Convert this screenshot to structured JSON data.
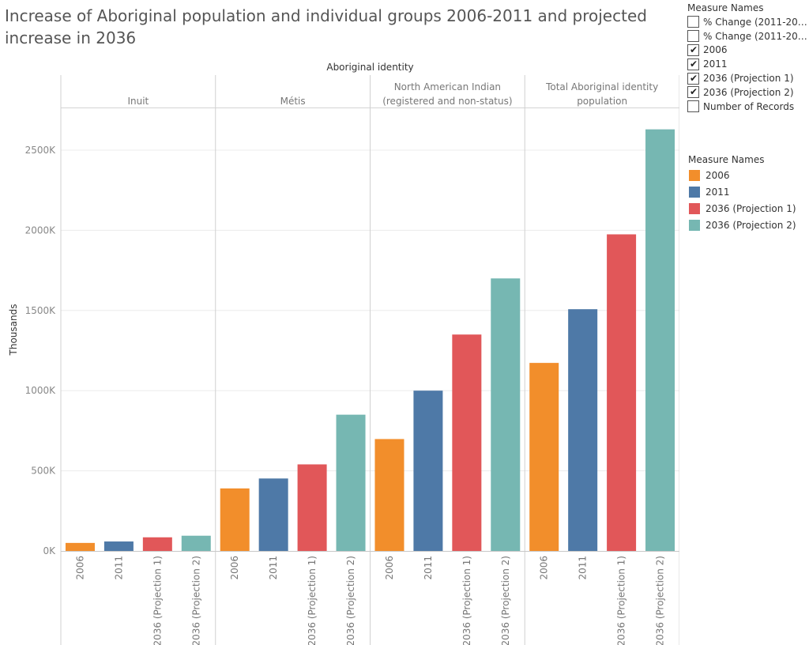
{
  "title": "Increase of Aboriginal population and individual groups 2006-2011 and projected increase in 2036",
  "filter_legend": {
    "header": "Measure Names",
    "items": [
      {
        "label": "% Change (2011-203..",
        "checked": false
      },
      {
        "label": "% Change (2011-203..",
        "checked": false
      },
      {
        "label": "2006",
        "checked": true
      },
      {
        "label": "2011",
        "checked": true
      },
      {
        "label": "2036 (Projection 1)",
        "checked": true
      },
      {
        "label": "2036 (Projection 2)",
        "checked": true
      },
      {
        "label": "Number of Records",
        "checked": false
      }
    ]
  },
  "color_legend": {
    "header": "Measure Names",
    "items": [
      {
        "label": "2006",
        "color": "#f28e2b"
      },
      {
        "label": "2011",
        "color": "#4e79a7"
      },
      {
        "label": "2036 (Projection 1)",
        "color": "#e15759"
      },
      {
        "label": "2036 (Projection 2)",
        "color": "#76b7b2"
      }
    ]
  },
  "chart_data": {
    "type": "bar",
    "header": "Aboriginal identity",
    "ylabel": "Thousands",
    "ylim": [
      0,
      2700
    ],
    "yticks": [
      0,
      500,
      1000,
      1500,
      2000,
      2500
    ],
    "ytick_labels": [
      "0K",
      "500K",
      "1000K",
      "1500K",
      "2000K",
      "2500K"
    ],
    "measures": [
      "2006",
      "2011",
      "2036 (Projection 1)",
      "2036 (Projection 2)"
    ],
    "colors": [
      "#f28e2b",
      "#4e79a7",
      "#e15759",
      "#76b7b2"
    ],
    "groups": [
      {
        "label": [
          "Inuit"
        ],
        "values": [
          50,
          59,
          85,
          95
        ]
      },
      {
        "label": [
          "Métis"
        ],
        "values": [
          390,
          452,
          540,
          850
        ]
      },
      {
        "label": [
          "North American Indian",
          "(registered and non-status)"
        ],
        "values": [
          698,
          1000,
          1350,
          1700
        ]
      },
      {
        "label": [
          "Total Aboriginal identity",
          "population"
        ],
        "values": [
          1173,
          1508,
          1975,
          2630
        ]
      }
    ],
    "grid": true
  }
}
